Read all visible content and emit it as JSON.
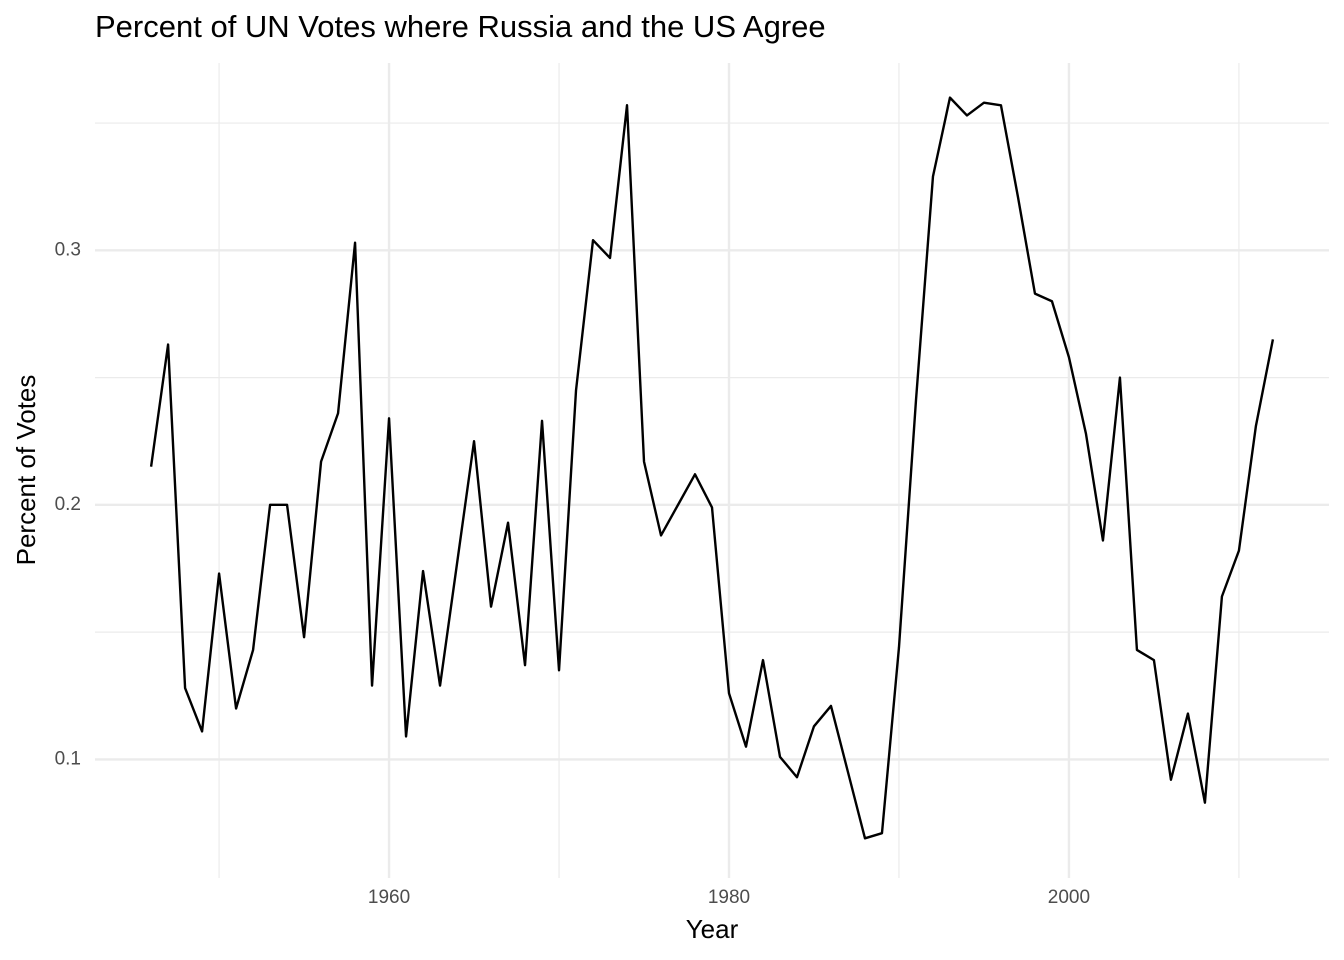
{
  "chart_data": {
    "type": "line",
    "title": "Percent of UN Votes where Russia and the US Agree",
    "x_label": "Year",
    "y_label": "Percent of Votes",
    "x": [
      1946,
      1947,
      1948,
      1949,
      1950,
      1951,
      1952,
      1953,
      1954,
      1955,
      1956,
      1957,
      1958,
      1959,
      1960,
      1961,
      1962,
      1963,
      1964,
      1965,
      1966,
      1967,
      1968,
      1969,
      1970,
      1971,
      1972,
      1973,
      1974,
      1975,
      1976,
      1977,
      1978,
      1979,
      1980,
      1981,
      1982,
      1983,
      1984,
      1985,
      1986,
      1987,
      1988,
      1989,
      1990,
      1991,
      1992,
      1993,
      1994,
      1995,
      1996,
      1997,
      1998,
      1999,
      2000,
      2001,
      2002,
      2003,
      2004,
      2005,
      2006,
      2007,
      2008,
      2009,
      2010,
      2011,
      2012
    ],
    "series": [
      {
        "color": "#000000",
        "values": [
          0.215,
          0.263,
          0.128,
          0.111,
          0.173,
          0.12,
          0.143,
          0.2,
          0.2,
          0.148,
          0.217,
          0.236,
          0.303,
          0.129,
          0.234,
          0.109,
          0.174,
          0.129,
          0.177,
          0.225,
          0.16,
          0.193,
          0.137,
          0.233,
          0.135,
          0.245,
          0.304,
          0.297,
          0.357,
          0.217,
          0.188,
          0.2,
          0.212,
          0.199,
          0.126,
          0.105,
          0.139,
          0.101,
          0.093,
          0.113,
          0.121,
          0.095,
          0.069,
          0.071,
          0.144,
          0.241,
          0.329,
          0.36,
          0.353,
          0.358,
          0.357,
          0.321,
          0.283,
          0.28,
          0.258,
          0.228,
          0.186,
          0.25,
          0.143,
          0.139,
          0.092,
          0.118,
          0.083,
          0.164,
          0.182,
          0.231,
          0.265
        ]
      }
    ],
    "xlim": [
      1942.7,
      2015.3
    ],
    "xticks": [
      1960,
      1980,
      2000
    ],
    "xminor": [
      1950,
      1970,
      1990,
      2010
    ],
    "ylim": [
      0.0534,
      0.3736
    ],
    "yticks": [
      0.1,
      0.2,
      0.3
    ],
    "yminor": [
      0.15,
      0.25,
      0.35
    ],
    "grid": true
  }
}
